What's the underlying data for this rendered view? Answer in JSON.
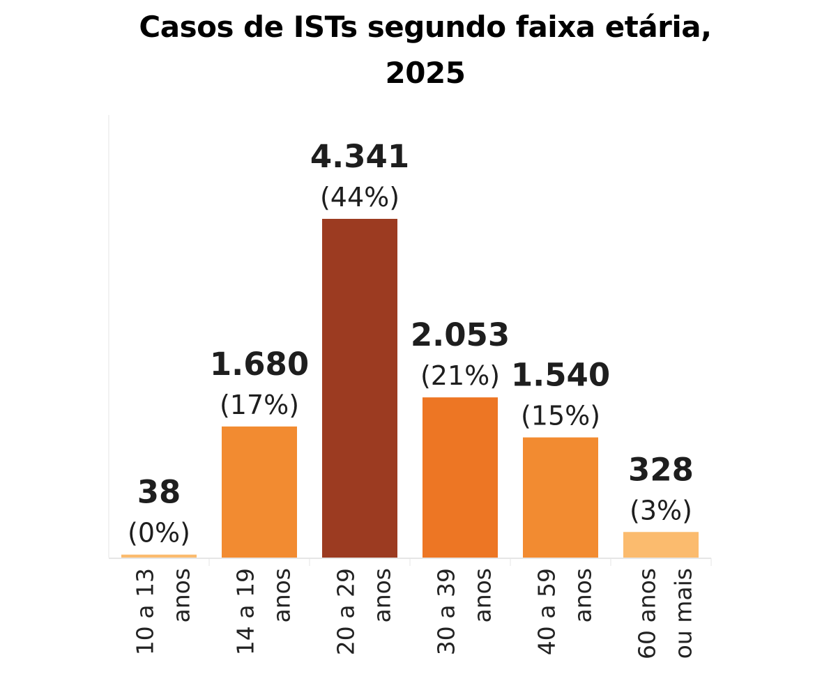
{
  "title": {
    "line1": "Casos de ISTs segundo faixa etária,",
    "line2": "2025"
  },
  "colors": {
    "light_orange": "#fbbb6e",
    "orange": "#f28b31",
    "dark_orange": "#ed7624",
    "brown": "#9c3b21",
    "axis": "#e6e6e6"
  },
  "chart_data": {
    "type": "bar",
    "categories": [
      [
        "10 a 13",
        "anos"
      ],
      [
        "14 a 19",
        "anos"
      ],
      [
        "20 a 29",
        "anos"
      ],
      [
        "30 a 39",
        "anos"
      ],
      [
        "40 a 59",
        "anos"
      ],
      [
        "60 anos",
        "ou mais"
      ]
    ],
    "values": [
      38,
      1680,
      4341,
      2053,
      1540,
      328
    ],
    "value_labels": [
      "38",
      "1.680",
      "4.341",
      "2.053",
      "1.540",
      "328"
    ],
    "percent_labels": [
      "(0%)",
      "(17%)",
      "(44%)",
      "(21%)",
      "(15%)",
      "(3%)"
    ],
    "bar_colors": [
      "#fbbb6e",
      "#f28b31",
      "#9c3b21",
      "#ed7624",
      "#f28b31",
      "#fbbb6e"
    ],
    "ylim": [
      0,
      4341
    ],
    "grid": false,
    "legend": "none",
    "xlabel": "",
    "ylabel": ""
  }
}
